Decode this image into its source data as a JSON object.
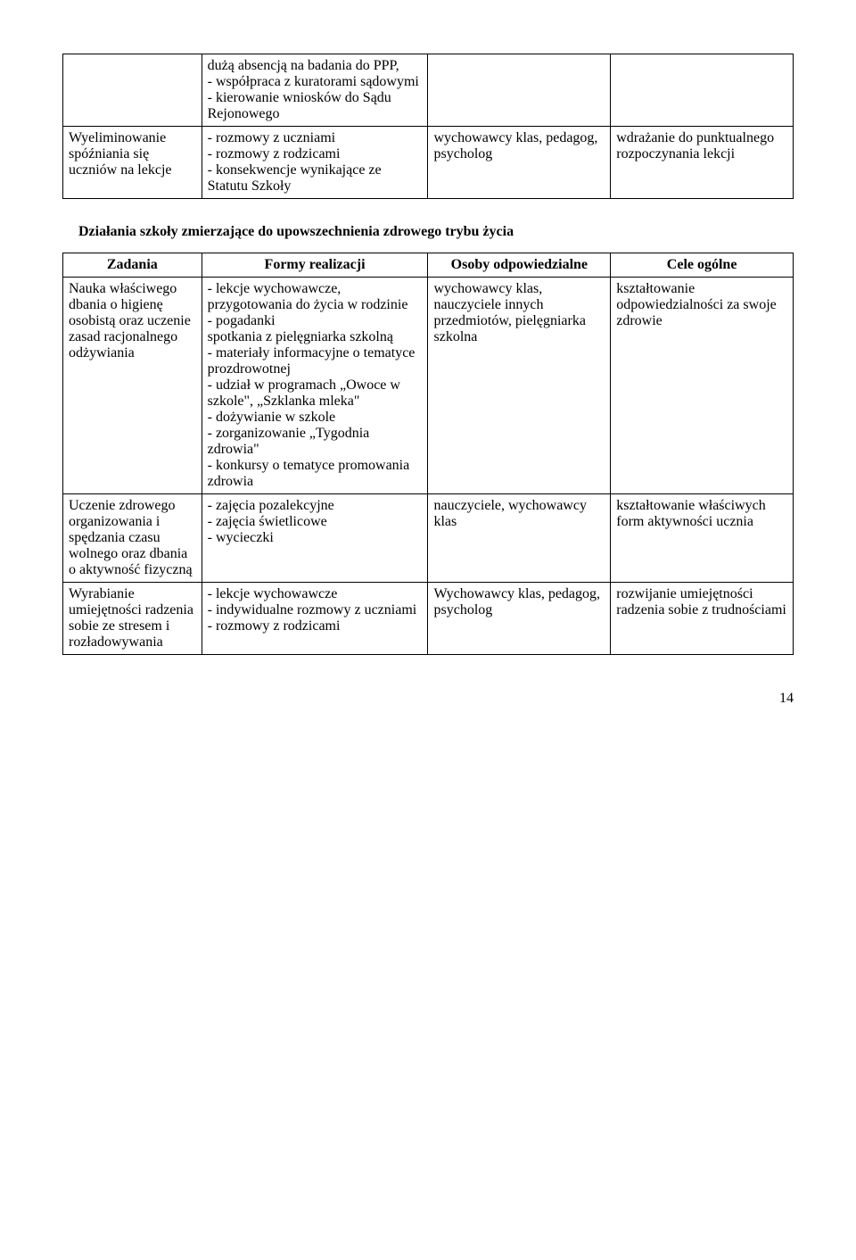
{
  "table1": {
    "row0": {
      "c0": "",
      "c1": "dużą absencją na badania do PPP,\n- współpraca z kuratorami sądowymi\n- kierowanie wniosków do Sądu Rejonowego",
      "c2": "",
      "c3": ""
    },
    "row1": {
      "c0": "Wyeliminowanie spóźniania się uczniów na lekcje",
      "c1": "- rozmowy z uczniami\n- rozmowy z rodzicami\n- konsekwencje wynikające ze Statutu Szkoły",
      "c2": "wychowawcy klas, pedagog, psycholog",
      "c3": "wdrażanie do punktualnego rozpoczynania lekcji"
    }
  },
  "section_title": "Działania szkoły zmierzające do upowszechnienia zdrowego trybu życia",
  "table2": {
    "header": {
      "c0": "Zadania",
      "c1": "Formy realizacji",
      "c2": "Osoby odpowiedzialne",
      "c3": "Cele ogólne"
    },
    "row0": {
      "c0": "Nauka właściwego dbania o higienę osobistą oraz uczenie zasad racjonalnego odżywiania",
      "c1": "- lekcje wychowawcze, przygotowania do życia w rodzinie\n- pogadanki\nspotkania z pielęgniarka szkolną\n- materiały informacyjne o tematyce prozdrowotnej\n- udział w programach „Owoce w szkole\", „Szklanka mleka\"\n- dożywianie w szkole\n- zorganizowanie „Tygodnia zdrowia\"\n- konkursy o tematyce promowania zdrowia",
      "c2": "wychowawcy klas, nauczyciele innych przedmiotów, pielęgniarka szkolna",
      "c3": "kształtowanie odpowiedzialności za swoje zdrowie"
    },
    "row1": {
      "c0": "Uczenie zdrowego organizowania i spędzania czasu wolnego oraz dbania o aktywność fizyczną",
      "c1": "- zajęcia pozalekcyjne\n- zajęcia świetlicowe\n- wycieczki",
      "c2": "nauczyciele, wychowawcy klas",
      "c3": "kształtowanie właściwych form aktywności ucznia"
    },
    "row2": {
      "c0": "Wyrabianie umiejętności radzenia sobie ze stresem i rozładowywania",
      "c1": "- lekcje wychowawcze\n- indywidualne rozmowy z uczniami\n- rozmowy z rodzicami",
      "c2": "Wychowawcy klas, pedagog, psycholog",
      "c3": "rozwijanie umiejętności radzenia sobie z trudnościami"
    }
  },
  "page_number": "14"
}
